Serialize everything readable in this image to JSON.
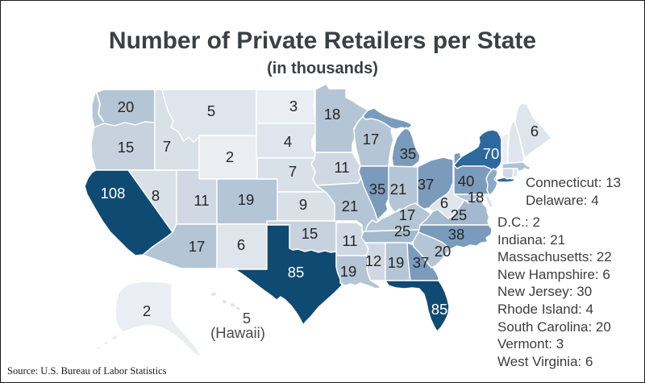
{
  "chart_data": {
    "type": "choropleth_map",
    "title": "Number of Private Retailers per State",
    "subtitle": "(in thousands)",
    "unit": "thousands",
    "source": "Source: U.S. Bureau of Labor Statistics",
    "hawaii_note": "(Hawaii)",
    "color_scale": {
      "stops": [
        [
          3,
          "#eaeef2"
        ],
        [
          6,
          "#dfe5ec"
        ],
        [
          9,
          "#d8e0e8"
        ],
        [
          13,
          "#d0d9e3"
        ],
        [
          16,
          "#c7d2de"
        ],
        [
          21,
          "#b4c5d6"
        ],
        [
          23,
          "#aec2d4"
        ],
        [
          27,
          "#a3b9ce"
        ],
        [
          32,
          "#8daac4"
        ],
        [
          42,
          "#7b9bbc"
        ],
        [
          75,
          "#2e699d"
        ],
        [
          999,
          "#0f4a72"
        ]
      ],
      "label_light_threshold": 70,
      "label_dark_color": "#333333",
      "label_light_color": "#ffffff"
    },
    "states": [
      {
        "abbr": "WA",
        "name": "Washington",
        "value": 20
      },
      {
        "abbr": "OR",
        "name": "Oregon",
        "value": 15
      },
      {
        "abbr": "CA",
        "name": "California",
        "value": 108
      },
      {
        "abbr": "NV",
        "name": "Nevada",
        "value": 8
      },
      {
        "abbr": "ID",
        "name": "Idaho",
        "value": 7
      },
      {
        "abbr": "MT",
        "name": "Montana",
        "value": 5
      },
      {
        "abbr": "WY",
        "name": "Wyoming",
        "value": 2
      },
      {
        "abbr": "UT",
        "name": "Utah",
        "value": 11
      },
      {
        "abbr": "CO",
        "name": "Colorado",
        "value": 19
      },
      {
        "abbr": "AZ",
        "name": "Arizona",
        "value": 17
      },
      {
        "abbr": "NM",
        "name": "New Mexico",
        "value": 6
      },
      {
        "abbr": "ND",
        "name": "North Dakota",
        "value": 3
      },
      {
        "abbr": "SD",
        "name": "South Dakota",
        "value": 4
      },
      {
        "abbr": "NE",
        "name": "Nebraska",
        "value": 7
      },
      {
        "abbr": "KS",
        "name": "Kansas",
        "value": 9
      },
      {
        "abbr": "OK",
        "name": "Oklahoma",
        "value": 15
      },
      {
        "abbr": "TX",
        "name": "Texas",
        "value": 85
      },
      {
        "abbr": "MN",
        "name": "Minnesota",
        "value": 18
      },
      {
        "abbr": "IA",
        "name": "Iowa",
        "value": 11
      },
      {
        "abbr": "MO",
        "name": "Missouri",
        "value": 21
      },
      {
        "abbr": "AR",
        "name": "Arkansas",
        "value": 11
      },
      {
        "abbr": "LA",
        "name": "Louisiana",
        "value": 19
      },
      {
        "abbr": "WI",
        "name": "Wisconsin",
        "value": 17
      },
      {
        "abbr": "IL",
        "name": "Illinois",
        "value": 35
      },
      {
        "abbr": "MS",
        "name": "Mississippi",
        "value": 12
      },
      {
        "abbr": "MI",
        "name": "Michigan",
        "value": 35
      },
      {
        "abbr": "IN",
        "name": "Indiana",
        "value": 21
      },
      {
        "abbr": "OH",
        "name": "Ohio",
        "value": 37
      },
      {
        "abbr": "KY",
        "name": "Kentucky",
        "value": 17
      },
      {
        "abbr": "TN",
        "name": "Tennessee",
        "value": 25
      },
      {
        "abbr": "AL",
        "name": "Alabama",
        "value": 19
      },
      {
        "abbr": "GA",
        "name": "Georgia",
        "value": 37
      },
      {
        "abbr": "FL",
        "name": "Florida",
        "value": 85
      },
      {
        "abbr": "WV",
        "name": "West Virginia",
        "value": 6
      },
      {
        "abbr": "VA",
        "name": "Virginia",
        "value": 25
      },
      {
        "abbr": "NC",
        "name": "North Carolina",
        "value": 38
      },
      {
        "abbr": "SC",
        "name": "South Carolina",
        "value": 20
      },
      {
        "abbr": "PA",
        "name": "Pennsylvania",
        "value": 40
      },
      {
        "abbr": "NY",
        "name": "New York",
        "value": 70
      },
      {
        "abbr": "ME",
        "name": "Maine",
        "value": 6
      },
      {
        "abbr": "VT",
        "name": "Vermont",
        "value": 3
      },
      {
        "abbr": "NH",
        "name": "New Hampshire",
        "value": 6
      },
      {
        "abbr": "MA",
        "name": "Massachusetts",
        "value": 22
      },
      {
        "abbr": "CT",
        "name": "Connecticut",
        "value": 13
      },
      {
        "abbr": "RI",
        "name": "Rhode Island",
        "value": 4
      },
      {
        "abbr": "NJ",
        "name": "New Jersey",
        "value": 30
      },
      {
        "abbr": "MD",
        "name": "Maryland",
        "value": 18
      },
      {
        "abbr": "DE",
        "name": "Delaware",
        "value": 4
      },
      {
        "abbr": "DC",
        "name": "D.C.",
        "value": 2
      },
      {
        "abbr": "AK",
        "name": "Alaska",
        "value": 2
      },
      {
        "abbr": "HI",
        "name": "Hawaii",
        "value": 5
      }
    ],
    "side_list_group_1": [
      {
        "name": "Connecticut",
        "value": 13
      },
      {
        "name": "Delaware",
        "value": 4
      }
    ],
    "side_list_group_2": [
      {
        "name": "D.C.",
        "value": 2
      },
      {
        "name": "Indiana",
        "value": 21
      },
      {
        "name": "Massachusetts",
        "value": 22
      },
      {
        "name": "New Hampshire",
        "value": 6
      },
      {
        "name": "New Jersey",
        "value": 30
      },
      {
        "name": "Rhode Island",
        "value": 4
      },
      {
        "name": "South Carolina",
        "value": 20
      },
      {
        "name": "Vermont",
        "value": 3
      },
      {
        "name": "West Virginia",
        "value": 6
      }
    ]
  }
}
